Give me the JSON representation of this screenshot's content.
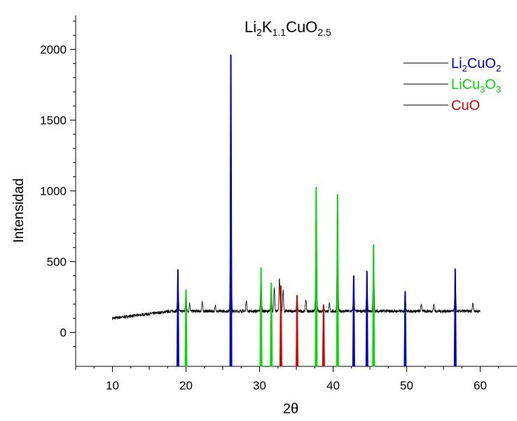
{
  "chart_data": {
    "type": "line",
    "title": {
      "parts": [
        "Li",
        "2",
        "K",
        "1.1",
        "CuO",
        "2.5"
      ]
    },
    "xlabel": "2θ",
    "ylabel": "Intensidad",
    "xlim": [
      5,
      65
    ],
    "ylim": [
      -240,
      2240
    ],
    "x_ticks": [
      10,
      20,
      30,
      40,
      50,
      60
    ],
    "y_ticks": [
      0,
      500,
      1000,
      1500,
      2000
    ],
    "grid": false,
    "legend_position": "top-right",
    "colors": {
      "Li2CuO2": "#0000cc",
      "LiCu3O3": "#00dd00",
      "CuO": "#dd0000",
      "pattern": "#000000"
    },
    "legend": [
      {
        "key": "Li2CuO2",
        "parts": [
          "Li",
          "2",
          "CuO",
          "2"
        ]
      },
      {
        "key": "LiCu3O3",
        "parts": [
          "LiCu",
          "3",
          "O",
          "3"
        ]
      },
      {
        "key": "CuO",
        "parts": [
          "CuO"
        ]
      }
    ],
    "pattern": {
      "baseline": 100,
      "baseline_end": 150,
      "noise": 22
    },
    "pattern_peaks": [
      {
        "x": 18.9,
        "y": 440
      },
      {
        "x": 20.0,
        "y": 300
      },
      {
        "x": 20.5,
        "y": 205
      },
      {
        "x": 22.2,
        "y": 210
      },
      {
        "x": 24.0,
        "y": 190
      },
      {
        "x": 26.1,
        "y": 1960
      },
      {
        "x": 28.2,
        "y": 230
      },
      {
        "x": 30.2,
        "y": 450
      },
      {
        "x": 31.6,
        "y": 350
      },
      {
        "x": 32.0,
        "y": 310
      },
      {
        "x": 32.7,
        "y": 380
      },
      {
        "x": 33.2,
        "y": 300
      },
      {
        "x": 35.1,
        "y": 260
      },
      {
        "x": 36.3,
        "y": 230
      },
      {
        "x": 37.7,
        "y": 1020
      },
      {
        "x": 38.7,
        "y": 195
      },
      {
        "x": 39.5,
        "y": 200
      },
      {
        "x": 40.6,
        "y": 975
      },
      {
        "x": 42.8,
        "y": 400
      },
      {
        "x": 44.6,
        "y": 430
      },
      {
        "x": 45.5,
        "y": 615
      },
      {
        "x": 49.8,
        "y": 290
      },
      {
        "x": 52.0,
        "y": 200
      },
      {
        "x": 53.7,
        "y": 195
      },
      {
        "x": 56.6,
        "y": 445
      },
      {
        "x": 59.0,
        "y": 210
      }
    ],
    "series": [
      {
        "key": "Li2CuO2",
        "peaks": [
          {
            "x": 18.9,
            "y": 440
          },
          {
            "x": 26.1,
            "y": 1960
          },
          {
            "x": 42.8,
            "y": 400
          },
          {
            "x": 44.6,
            "y": 430
          },
          {
            "x": 49.8,
            "y": 290
          },
          {
            "x": 56.6,
            "y": 445
          }
        ]
      },
      {
        "key": "LiCu3O3",
        "peaks": [
          {
            "x": 20.0,
            "y": 300
          },
          {
            "x": 30.2,
            "y": 450
          },
          {
            "x": 31.6,
            "y": 350
          },
          {
            "x": 37.7,
            "y": 1020
          },
          {
            "x": 40.6,
            "y": 975
          },
          {
            "x": 45.5,
            "y": 615
          }
        ]
      },
      {
        "key": "CuO",
        "peaks": [
          {
            "x": 32.9,
            "y": 330
          },
          {
            "x": 35.1,
            "y": 260
          },
          {
            "x": 38.7,
            "y": 195
          }
        ]
      }
    ]
  }
}
